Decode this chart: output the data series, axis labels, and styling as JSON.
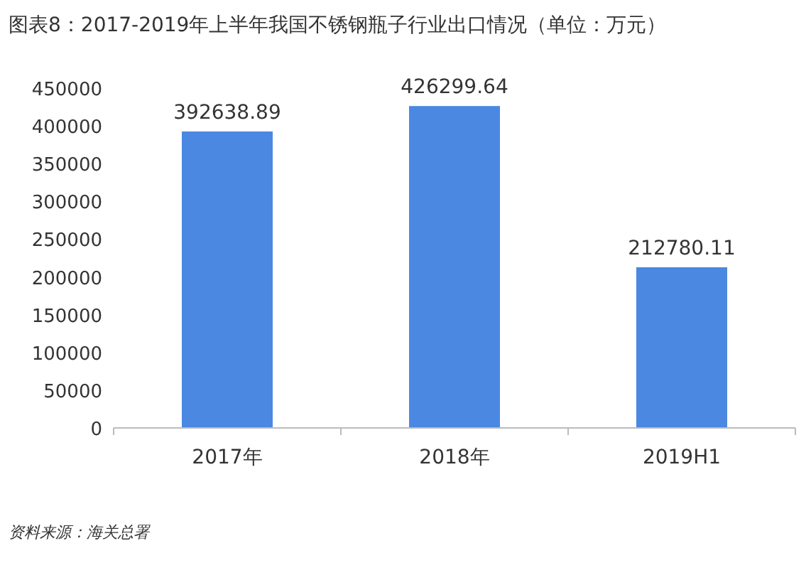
{
  "chart_data": {
    "type": "bar",
    "title": "图表8：2017-2019年上半年我国不锈钢瓶子行业出口情况（单位：万元）",
    "categories": [
      "2017年",
      "2018年",
      "2019H1"
    ],
    "values": [
      392638.89,
      426299.64,
      212780.11
    ],
    "color": "#4a88e2",
    "data_labels": true,
    "ylim": [
      0,
      450000
    ],
    "yticks": [
      0,
      50000,
      100000,
      150000,
      200000,
      250000,
      300000,
      350000,
      400000,
      450000
    ],
    "grid": false,
    "annotations": [
      "资料来源：海关总署"
    ]
  }
}
